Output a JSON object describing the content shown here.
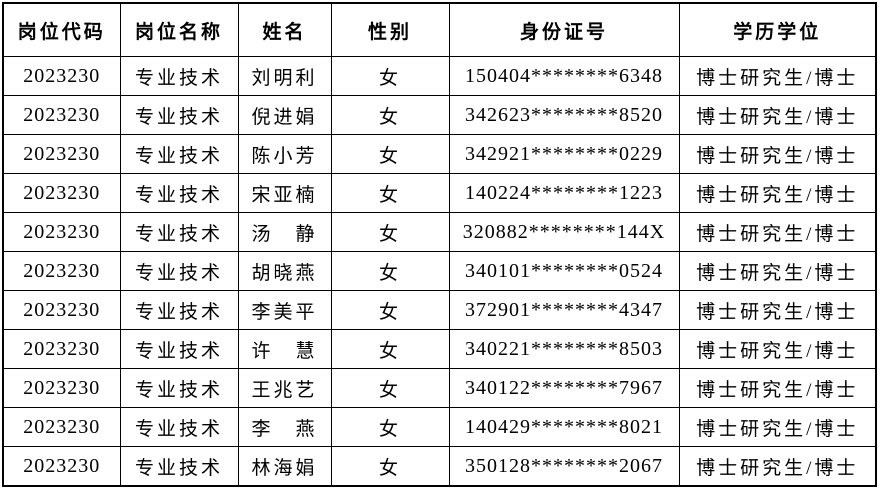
{
  "page": {
    "background_color": "#ffffff",
    "text_color": "#000000",
    "border_color": "#000000"
  },
  "table": {
    "headers": [
      "岗位代码",
      "岗位名称",
      "姓名",
      "性别",
      "身份证号",
      "学历学位"
    ],
    "rows": [
      [
        "2023230",
        "专业技术",
        "刘明利",
        "女",
        "150404********6348",
        "博士研究生/博士"
      ],
      [
        "2023230",
        "专业技术",
        "倪进娟",
        "女",
        "342623********8520",
        "博士研究生/博士"
      ],
      [
        "2023230",
        "专业技术",
        "陈小芳",
        "女",
        "342921********0229",
        "博士研究生/博士"
      ],
      [
        "2023230",
        "专业技术",
        "宋亚楠",
        "女",
        "140224********1223",
        "博士研究生/博士"
      ],
      [
        "2023230",
        "专业技术",
        "汤　静",
        "女",
        "320882********144X",
        "博士研究生/博士"
      ],
      [
        "2023230",
        "专业技术",
        "胡晓燕",
        "女",
        "340101********0524",
        "博士研究生/博士"
      ],
      [
        "2023230",
        "专业技术",
        "李美平",
        "女",
        "372901********4347",
        "博士研究生/博士"
      ],
      [
        "2023230",
        "专业技术",
        "许　慧",
        "女",
        "340221********8503",
        "博士研究生/博士"
      ],
      [
        "2023230",
        "专业技术",
        "王兆艺",
        "女",
        "340122********7967",
        "博士研究生/博士"
      ],
      [
        "2023230",
        "专业技术",
        "李　燕",
        "女",
        "140429********8021",
        "博士研究生/博士"
      ],
      [
        "2023230",
        "专业技术",
        "林海娟",
        "女",
        "350128********2067",
        "博士研究生/博士"
      ]
    ]
  }
}
